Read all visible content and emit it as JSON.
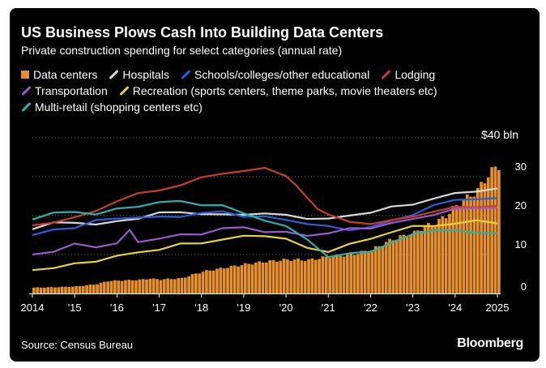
{
  "chart_data": {
    "type": "bar+line",
    "title": "US Business Plows Cash Into Building Data Centers",
    "subtitle": "Private construction spending for select categories (annual rate)",
    "unit_label": "$40 bln",
    "y_ticks": [
      "0",
      "10",
      "20",
      "30"
    ],
    "x_ticks": [
      "2014",
      "'15",
      "'16",
      "'17",
      "'18",
      "'19",
      "'20",
      "'21",
      "'22",
      "'23",
      "'24",
      "2025"
    ],
    "ylim": [
      0,
      40
    ],
    "xlim": [
      2014.0,
      2025.0
    ],
    "grid": true,
    "legend_placement": "top",
    "source": "Source: Census Bureau",
    "brand": "Bloomberg",
    "series": [
      {
        "name": "Data centers",
        "type": "bar",
        "color": "#E5902A",
        "points": [
          [
            2014.0,
            1.5
          ],
          [
            2014.5,
            1.6
          ],
          [
            2015.0,
            1.8
          ],
          [
            2015.5,
            2.4
          ],
          [
            2015.75,
            3.2
          ],
          [
            2016.0,
            3.3
          ],
          [
            2016.5,
            3.5
          ],
          [
            2016.75,
            3.8
          ],
          [
            2017.0,
            3.6
          ],
          [
            2017.5,
            3.9
          ],
          [
            2017.75,
            4.8
          ],
          [
            2018.0,
            5.6
          ],
          [
            2018.5,
            6.6
          ],
          [
            2019.0,
            7.5
          ],
          [
            2019.5,
            8.2
          ],
          [
            2020.0,
            8.7
          ],
          [
            2020.5,
            8.6
          ],
          [
            2021.0,
            9.5
          ],
          [
            2021.5,
            10.0
          ],
          [
            2022.0,
            11.2
          ],
          [
            2022.5,
            14.0
          ],
          [
            2023.0,
            15.5
          ],
          [
            2023.2,
            17.0
          ],
          [
            2023.5,
            18.0
          ],
          [
            2023.75,
            20.0
          ],
          [
            2024.0,
            22.5
          ],
          [
            2024.25,
            24.5
          ],
          [
            2024.5,
            26.5
          ],
          [
            2024.75,
            30.5
          ],
          [
            2025.0,
            33.0
          ]
        ]
      },
      {
        "name": "Hospitals",
        "type": "line",
        "color": "#D9D9D9",
        "points": [
          [
            2014.0,
            16.5
          ],
          [
            2014.5,
            18.0
          ],
          [
            2015.0,
            18.5
          ],
          [
            2015.5,
            17.5
          ],
          [
            2016.0,
            18.5
          ],
          [
            2016.5,
            19.5
          ],
          [
            2017.0,
            20.5
          ],
          [
            2017.5,
            21.0
          ],
          [
            2018.0,
            20.5
          ],
          [
            2018.5,
            20.0
          ],
          [
            2019.0,
            20.5
          ],
          [
            2019.5,
            20.5
          ],
          [
            2020.0,
            20.0
          ],
          [
            2020.5,
            19.5
          ],
          [
            2021.0,
            19.0
          ],
          [
            2021.5,
            20.0
          ],
          [
            2022.0,
            21.0
          ],
          [
            2022.5,
            22.0
          ],
          [
            2023.0,
            23.0
          ],
          [
            2023.5,
            24.5
          ],
          [
            2024.0,
            25.5
          ],
          [
            2024.5,
            26.5
          ],
          [
            2025.0,
            27.0
          ]
        ]
      },
      {
        "name": "Schools/colleges/other educational",
        "type": "line",
        "color": "#2C5FD6",
        "points": [
          [
            2014.0,
            15.0
          ],
          [
            2014.5,
            16.5
          ],
          [
            2015.0,
            17.0
          ],
          [
            2015.5,
            18.5
          ],
          [
            2016.0,
            19.5
          ],
          [
            2016.5,
            19.5
          ],
          [
            2017.0,
            19.5
          ],
          [
            2017.5,
            20.0
          ],
          [
            2018.0,
            20.5
          ],
          [
            2018.5,
            21.0
          ],
          [
            2019.0,
            20.0
          ],
          [
            2019.5,
            19.5
          ],
          [
            2020.0,
            19.0
          ],
          [
            2020.5,
            18.0
          ],
          [
            2021.0,
            17.0
          ],
          [
            2021.5,
            16.5
          ],
          [
            2022.0,
            17.0
          ],
          [
            2022.5,
            18.5
          ],
          [
            2023.0,
            20.5
          ],
          [
            2023.5,
            22.5
          ],
          [
            2024.0,
            24.0
          ],
          [
            2024.5,
            24.5
          ],
          [
            2025.0,
            24.5
          ]
        ]
      },
      {
        "name": "Lodging",
        "type": "line",
        "color": "#C83D2A",
        "points": [
          [
            2014.0,
            17.5
          ],
          [
            2014.5,
            18.5
          ],
          [
            2015.0,
            19.5
          ],
          [
            2015.5,
            21.0
          ],
          [
            2016.0,
            24.0
          ],
          [
            2016.5,
            25.5
          ],
          [
            2017.0,
            26.5
          ],
          [
            2017.5,
            28.0
          ],
          [
            2018.0,
            29.5
          ],
          [
            2018.5,
            31.0
          ],
          [
            2019.0,
            31.5
          ],
          [
            2019.5,
            32.0
          ],
          [
            2020.0,
            30.5
          ],
          [
            2020.25,
            27.5
          ],
          [
            2020.5,
            24.5
          ],
          [
            2020.75,
            22.0
          ],
          [
            2021.0,
            20.0
          ],
          [
            2021.5,
            18.5
          ],
          [
            2022.0,
            18.0
          ],
          [
            2022.5,
            18.5
          ],
          [
            2023.0,
            20.0
          ],
          [
            2023.5,
            21.0
          ],
          [
            2024.0,
            22.0
          ],
          [
            2024.5,
            22.5
          ],
          [
            2025.0,
            22.5
          ]
        ]
      },
      {
        "name": "Transportation",
        "type": "line",
        "color": "#9B59D0",
        "points": [
          [
            2014.0,
            10.0
          ],
          [
            2014.5,
            11.0
          ],
          [
            2015.0,
            12.5
          ],
          [
            2015.5,
            12.0
          ],
          [
            2016.0,
            13.0
          ],
          [
            2016.3,
            16.0
          ],
          [
            2016.5,
            13.5
          ],
          [
            2017.0,
            14.0
          ],
          [
            2017.5,
            15.0
          ],
          [
            2018.0,
            15.5
          ],
          [
            2018.5,
            16.5
          ],
          [
            2019.0,
            17.0
          ],
          [
            2019.5,
            16.0
          ],
          [
            2020.0,
            15.5
          ],
          [
            2020.5,
            15.0
          ],
          [
            2021.0,
            15.5
          ],
          [
            2021.5,
            16.5
          ],
          [
            2022.0,
            17.0
          ],
          [
            2022.5,
            18.0
          ],
          [
            2023.0,
            19.0
          ],
          [
            2023.5,
            20.5
          ],
          [
            2024.0,
            21.5
          ],
          [
            2024.5,
            22.0
          ],
          [
            2025.0,
            22.0
          ]
        ]
      },
      {
        "name": "Recreation (sports centers, theme parks, movie theaters etc)",
        "type": "line",
        "color": "#E8D23A",
        "points": [
          [
            2014.0,
            6.0
          ],
          [
            2014.5,
            6.5
          ],
          [
            2015.0,
            7.5
          ],
          [
            2015.5,
            8.5
          ],
          [
            2016.0,
            9.5
          ],
          [
            2016.5,
            10.5
          ],
          [
            2017.0,
            11.5
          ],
          [
            2017.5,
            12.5
          ],
          [
            2018.0,
            13.0
          ],
          [
            2018.5,
            14.0
          ],
          [
            2019.0,
            14.5
          ],
          [
            2019.5,
            15.0
          ],
          [
            2020.0,
            14.0
          ],
          [
            2020.5,
            11.5
          ],
          [
            2021.0,
            11.0
          ],
          [
            2021.5,
            12.5
          ],
          [
            2022.0,
            14.0
          ],
          [
            2022.5,
            16.0
          ],
          [
            2023.0,
            17.0
          ],
          [
            2023.5,
            17.5
          ],
          [
            2024.0,
            18.0
          ],
          [
            2024.5,
            18.5
          ],
          [
            2025.0,
            18.0
          ]
        ]
      },
      {
        "name": "Multi-retail (shopping centers etc)",
        "type": "line",
        "color": "#2BB0B0",
        "points": [
          [
            2014.0,
            19.0
          ],
          [
            2014.5,
            20.5
          ],
          [
            2015.0,
            21.0
          ],
          [
            2015.5,
            20.5
          ],
          [
            2016.0,
            21.5
          ],
          [
            2016.5,
            22.5
          ],
          [
            2017.0,
            23.5
          ],
          [
            2017.5,
            23.5
          ],
          [
            2018.0,
            23.0
          ],
          [
            2018.5,
            22.5
          ],
          [
            2019.0,
            20.5
          ],
          [
            2019.5,
            19.0
          ],
          [
            2020.0,
            17.0
          ],
          [
            2020.5,
            14.0
          ],
          [
            2021.0,
            9.5
          ],
          [
            2021.5,
            10.0
          ],
          [
            2022.0,
            11.0
          ],
          [
            2022.5,
            13.0
          ],
          [
            2023.0,
            15.0
          ],
          [
            2023.5,
            16.5
          ],
          [
            2024.0,
            16.0
          ],
          [
            2024.5,
            15.5
          ],
          [
            2025.0,
            15.5
          ]
        ]
      }
    ]
  }
}
